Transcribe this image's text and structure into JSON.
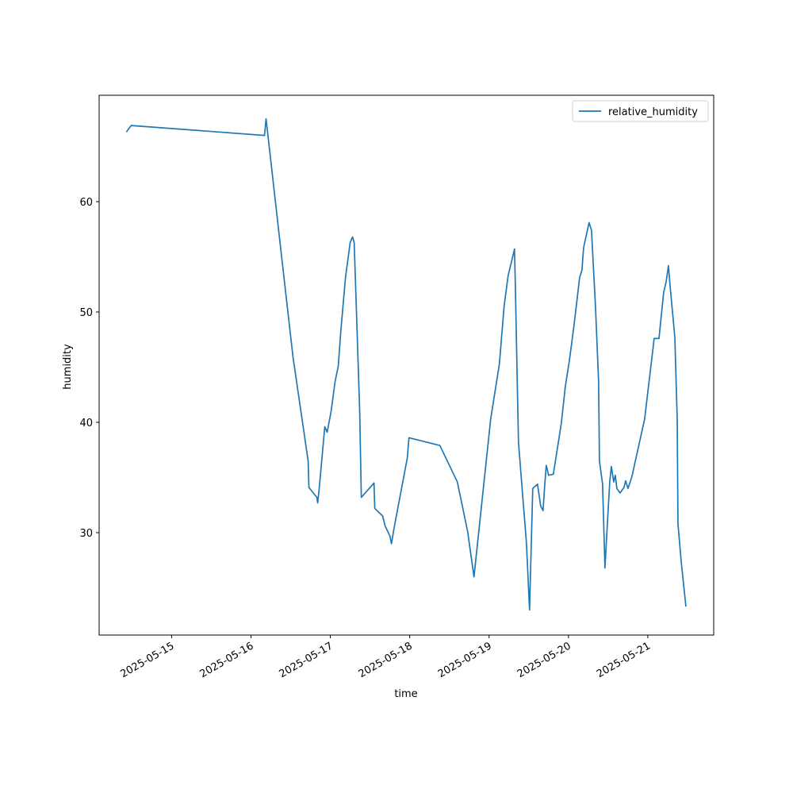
{
  "chart_data": {
    "type": "line",
    "xlabel": "time",
    "ylabel": "humidity",
    "x": [
      "2025-05-14 10:19",
      "2025-05-14 11:46",
      "2025-05-16 04:05",
      "2025-05-16 04:34",
      "2025-05-16 09:07",
      "2025-05-16 12:43",
      "2025-05-16 17:17",
      "2025-05-16 17:31",
      "2025-05-16 19:55",
      "2025-05-16 20:10",
      "2025-05-16 20:38",
      "2025-05-16 22:19",
      "2025-05-16 23:02",
      "2025-05-17 00:14",
      "2025-05-17 01:26",
      "2025-05-17 02:24",
      "2025-05-17 03:07",
      "2025-05-17 04:34",
      "2025-05-17 06:00",
      "2025-05-17 06:43",
      "2025-05-17 07:12",
      "2025-05-17 07:41",
      "2025-05-17 08:53",
      "2025-05-17 09:22",
      "2025-05-17 13:12",
      "2025-05-17 13:26",
      "2025-05-17 15:50",
      "2025-05-17 16:34",
      "2025-05-17 18:00",
      "2025-05-17 18:29",
      "2025-05-17 19:12",
      "2025-05-17 23:17",
      "2025-05-17 23:46",
      "2025-05-18 09:07",
      "2025-05-18 14:24",
      "2025-05-18 17:31",
      "2025-05-18 19:26",
      "2025-05-18 20:38",
      "2025-05-19 00:29",
      "2025-05-19 03:07",
      "2025-05-19 04:34",
      "2025-05-19 05:46",
      "2025-05-19 07:41",
      "2025-05-19 07:55",
      "2025-05-19 08:53",
      "2025-05-19 11:17",
      "2025-05-19 12:14",
      "2025-05-19 13:12",
      "2025-05-19 14:38",
      "2025-05-19 15:36",
      "2025-05-19 16:19",
      "2025-05-19 16:48",
      "2025-05-19 17:17",
      "2025-05-19 18:00",
      "2025-05-19 19:26",
      "2025-05-19 21:50",
      "2025-05-19 23:02",
      "2025-05-20 00:14",
      "2025-05-20 01:41",
      "2025-05-20 03:22",
      "2025-05-20 04:05",
      "2025-05-20 04:34",
      "2025-05-20 05:17",
      "2025-05-20 06:14",
      "2025-05-20 06:58",
      "2025-05-20 08:10",
      "2025-05-20 09:07",
      "2025-05-20 09:22",
      "2025-05-20 10:19",
      "2025-05-20 11:02",
      "2025-05-20 11:46",
      "2025-05-20 12:29",
      "2025-05-20 12:58",
      "2025-05-20 13:41",
      "2025-05-20 14:10",
      "2025-05-20 14:38",
      "2025-05-20 15:36",
      "2025-05-20 16:48",
      "2025-05-20 17:17",
      "2025-05-20 18:00",
      "2025-05-20 19:12",
      "2025-05-20 23:02",
      "2025-05-21 01:55",
      "2025-05-21 03:22",
      "2025-05-21 04:48",
      "2025-05-21 05:31",
      "2025-05-21 06:14",
      "2025-05-21 06:43",
      "2025-05-21 08:10",
      "2025-05-21 08:53",
      "2025-05-21 09:07",
      "2025-05-21 10:05",
      "2025-05-21 11:31"
    ],
    "series": [
      {
        "name": "relative_humidity",
        "color": "#1f77b4",
        "values": [
          66.3,
          66.9,
          66.0,
          67.5,
          55.4,
          45.9,
          36.5,
          34.1,
          33.2,
          32.7,
          34.0,
          39.6,
          39.1,
          41.0,
          43.7,
          45.1,
          48.1,
          53.1,
          56.3,
          56.8,
          56.3,
          52.0,
          40.9,
          33.2,
          34.5,
          32.2,
          31.5,
          30.6,
          29.7,
          29.0,
          30.3,
          36.8,
          38.6,
          37.9,
          34.6,
          30.1,
          26.0,
          29.4,
          40.3,
          45.3,
          50.6,
          53.3,
          55.7,
          52.7,
          38.2,
          29.1,
          23.0,
          34.0,
          34.4,
          32.4,
          32.0,
          34.2,
          36.1,
          35.2,
          35.3,
          39.9,
          43.2,
          45.5,
          48.8,
          53.1,
          53.8,
          55.8,
          56.8,
          58.1,
          57.4,
          50.5,
          43.7,
          36.5,
          34.4,
          26.8,
          30.8,
          34.6,
          36.0,
          34.6,
          35.2,
          34.0,
          33.6,
          34.1,
          34.7,
          34.0,
          35.1,
          40.3,
          47.6,
          47.6,
          51.8,
          52.7,
          54.2,
          52.4,
          47.7,
          40.3,
          30.8,
          27.4,
          23.3
        ]
      }
    ],
    "xlim": [
      "2025-05-14 02:05",
      "2025-05-21 19:55"
    ],
    "xticks": [
      "2025-05-15",
      "2025-05-16",
      "2025-05-17",
      "2025-05-18",
      "2025-05-19",
      "2025-05-20",
      "2025-05-21"
    ],
    "ylim": [
      20.72,
      69.64
    ],
    "yticks": [
      30,
      40,
      50,
      60
    ],
    "legend": "upper right",
    "grid": false
  }
}
